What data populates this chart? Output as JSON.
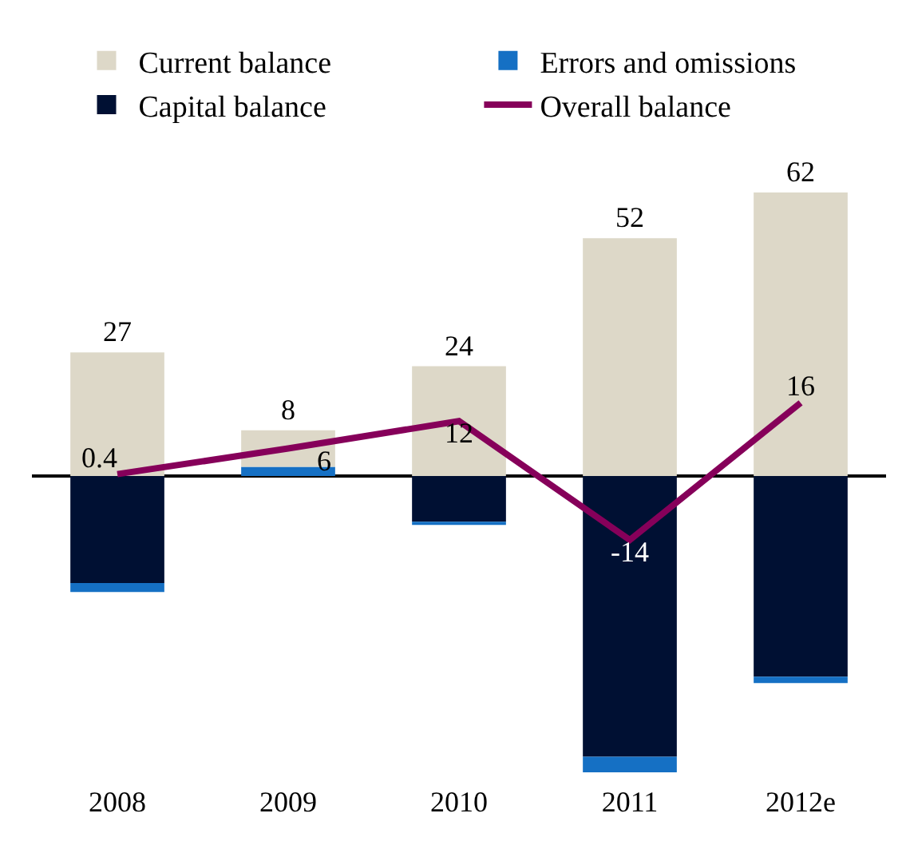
{
  "chart_data": {
    "type": "bar",
    "stacked": true,
    "categories": [
      "2008",
      "2009",
      "2010",
      "2011",
      "2012e"
    ],
    "series": [
      {
        "name": "Capital balance",
        "color": "#001033",
        "values": [
          -23.4,
          null,
          -10,
          -61.4,
          -43.9
        ]
      },
      {
        "name": "Errors and omissions",
        "color": "#1570c4",
        "values": [
          -2,
          2,
          -0.7,
          -3.4,
          -1.4
        ]
      },
      {
        "name": "Current balance",
        "color": "#ddd8c8",
        "values": [
          27,
          8,
          24,
          52,
          62
        ],
        "value_labels": [
          "27",
          "8",
          "24",
          "52",
          "62"
        ]
      },
      {
        "name": "Overall balance",
        "type": "line",
        "color": "#86005a",
        "values": [
          0.4,
          6,
          12,
          -14,
          16
        ],
        "value_labels": [
          "0.4",
          "6",
          "12",
          "-14",
          "16"
        ]
      }
    ],
    "legend": "top",
    "marker": "none"
  }
}
